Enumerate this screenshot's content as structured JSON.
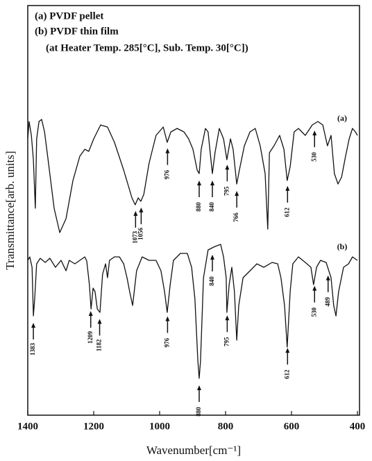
{
  "chart_data": {
    "type": "line",
    "header_lines": [
      "(a) PVDF pellet",
      "(b) PVDF thin film",
      "(at Heater Temp. 285[°C], Sub. Temp. 30[°C])"
    ],
    "x_label": "Wavenumber[cm⁻¹]",
    "y_label": "Transmittance[arb. units]",
    "xlim": [
      1400,
      400
    ],
    "xticks": [
      1400,
      1200,
      1000,
      800,
      600,
      400
    ],
    "ylim": [
      0,
      590
    ],
    "yticks": [],
    "series": [
      {
        "name": "(a)",
        "color": "#111111",
        "x": [
          1400,
          1396,
          1389,
          1383,
          1377,
          1373,
          1366,
          1358,
          1349,
          1337,
          1320,
          1303,
          1284,
          1263,
          1242,
          1227,
          1215,
          1200,
          1179,
          1158,
          1137,
          1109,
          1084,
          1074,
          1065,
          1057,
          1048,
          1032,
          1011,
          989,
          977,
          966,
          947,
          926,
          912,
          899,
          886,
          880,
          874,
          861,
          853,
          840,
          832,
          819,
          806,
          796,
          785,
          777,
          766,
          758,
          743,
          726,
          710,
          695,
          680,
          672,
          667,
          653,
          636,
          623,
          613,
          604,
          592,
          579,
          558,
          537,
          520,
          505,
          491,
          480,
          470,
          459,
          448,
          436,
          425,
          415,
          406,
          400
        ],
        "values": [
          398,
          423,
          403,
          368,
          298,
          398,
          423,
          426,
          408,
          363,
          298,
          263,
          283,
          338,
          373,
          383,
          380,
          398,
          418,
          415,
          393,
          353,
          313,
          303,
          313,
          308,
          318,
          363,
          403,
          415,
          393,
          408,
          413,
          408,
          398,
          383,
          353,
          348,
          383,
          413,
          408,
          348,
          378,
          413,
          398,
          368,
          398,
          383,
          333,
          353,
          388,
          408,
          413,
          388,
          348,
          268,
          378,
          388,
          403,
          383,
          338,
          358,
          408,
          413,
          403,
          418,
          423,
          418,
          388,
          403,
          348,
          333,
          343,
          373,
          398,
          413,
          408,
          403
        ],
        "annotations": [
          {
            "label": "1073",
            "x": 1073
          },
          {
            "label": "1056",
            "x": 1056
          },
          {
            "label": "976",
            "x": 976
          },
          {
            "label": "880",
            "x": 880
          },
          {
            "label": "840",
            "x": 840
          },
          {
            "label": "795",
            "x": 795
          },
          {
            "label": "766",
            "x": 766
          },
          {
            "label": "612",
            "x": 612
          },
          {
            "label": "530",
            "x": 530
          }
        ]
      },
      {
        "name": "(b)",
        "color": "#111111",
        "x": [
          1400,
          1394,
          1387,
          1383,
          1379,
          1373,
          1362,
          1347,
          1333,
          1316,
          1299,
          1284,
          1274,
          1257,
          1242,
          1227,
          1221,
          1213,
          1208,
          1202,
          1196,
          1189,
          1181,
          1173,
          1164,
          1158,
          1152,
          1137,
          1122,
          1109,
          1099,
          1091,
          1082,
          1070,
          1053,
          1032,
          1011,
          996,
          985,
          977,
          968,
          958,
          937,
          916,
          903,
          893,
          884,
          880,
          876,
          867,
          853,
          832,
          815,
          806,
          798,
          796,
          789,
          781,
          773,
          766,
          760,
          747,
          726,
          705,
          684,
          659,
          642,
          632,
          621,
          613,
          604,
          596,
          579,
          558,
          541,
          533,
          524,
          512,
          495,
          480,
          472,
          465,
          457,
          442,
          427,
          415,
          400
        ],
        "values": [
          223,
          228,
          213,
          143,
          168,
          218,
          226,
          220,
          226,
          213,
          223,
          208,
          223,
          218,
          223,
          228,
          222,
          188,
          153,
          183,
          178,
          153,
          148,
          203,
          218,
          198,
          223,
          228,
          228,
          218,
          198,
          178,
          158,
          208,
          228,
          223,
          223,
          208,
          178,
          148,
          188,
          223,
          233,
          233,
          213,
          168,
          78,
          53,
          78,
          198,
          238,
          243,
          246,
          228,
          198,
          148,
          188,
          213,
          178,
          108,
          158,
          198,
          208,
          218,
          213,
          220,
          218,
          198,
          158,
          98,
          178,
          218,
          228,
          220,
          213,
          188,
          213,
          223,
          220,
          198,
          158,
          143,
          178,
          213,
          218,
          228,
          223
        ],
        "annotations": [
          {
            "label": "1383",
            "x": 1383
          },
          {
            "label": "1209",
            "x": 1209
          },
          {
            "label": "1182",
            "x": 1182
          },
          {
            "label": "976",
            "x": 976
          },
          {
            "label": "880",
            "x": 880
          },
          {
            "label": "840",
            "x": 840
          },
          {
            "label": "795",
            "x": 795
          },
          {
            "label": "612",
            "x": 612
          },
          {
            "label": "530",
            "x": 530
          },
          {
            "label": "489",
            "x": 489
          }
        ]
      }
    ]
  }
}
